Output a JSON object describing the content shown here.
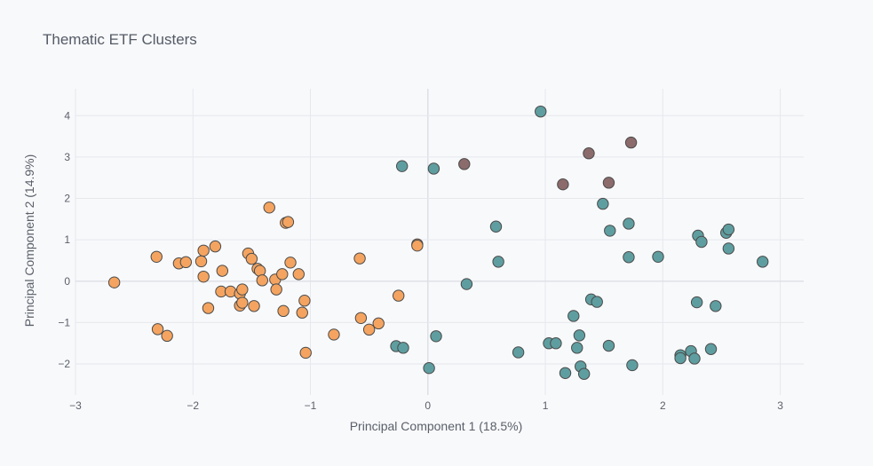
{
  "chart_data": {
    "type": "scatter",
    "title": "Thematic ETF Clusters",
    "xlabel": "Principal Component 1 (18.5%)",
    "ylabel": "Principal Component 2 (14.9%)",
    "xlim": [
      -3,
      3.2
    ],
    "ylim": [
      -2.75,
      4.65
    ],
    "x_ticks": [
      -3,
      -2,
      -1,
      0,
      1,
      2,
      3
    ],
    "y_ticks": [
      -2,
      -1,
      0,
      1,
      2,
      3,
      4
    ],
    "grid": true,
    "legend": "none",
    "colors": {
      "orange": "#f4a460",
      "teal": "#5f9ea0",
      "mauve": "#8b6b6b"
    },
    "series": [
      {
        "color": "#f4a460",
        "points": [
          [
            -2.67,
            -0.03
          ],
          [
            -2.31,
            0.59
          ],
          [
            -2.3,
            -1.16
          ],
          [
            -2.22,
            -1.32
          ],
          [
            -2.12,
            0.43
          ],
          [
            -2.06,
            0.46
          ],
          [
            -1.93,
            0.48
          ],
          [
            -1.91,
            0.74
          ],
          [
            -1.91,
            0.11
          ],
          [
            -1.87,
            -0.65
          ],
          [
            -1.81,
            0.84
          ],
          [
            -1.76,
            -0.25
          ],
          [
            -1.75,
            0.25
          ],
          [
            -1.68,
            -0.25
          ],
          [
            -1.6,
            -0.59
          ],
          [
            -1.6,
            -0.3
          ],
          [
            -1.58,
            -0.2
          ],
          [
            -1.58,
            -0.52
          ],
          [
            -1.53,
            0.67
          ],
          [
            -1.5,
            0.54
          ],
          [
            -1.48,
            -0.6
          ],
          [
            -1.45,
            0.3
          ],
          [
            -1.43,
            0.25
          ],
          [
            -1.41,
            0.02
          ],
          [
            -1.35,
            1.78
          ],
          [
            -1.3,
            0.04
          ],
          [
            -1.29,
            -0.2
          ],
          [
            -1.24,
            0.17
          ],
          [
            -1.23,
            -0.72
          ],
          [
            -1.21,
            1.41
          ],
          [
            -1.19,
            1.43
          ],
          [
            -1.17,
            0.45
          ],
          [
            -1.1,
            0.17
          ],
          [
            -1.07,
            -0.76
          ],
          [
            -1.05,
            -0.47
          ],
          [
            -1.04,
            -1.73
          ],
          [
            -0.8,
            -1.29
          ],
          [
            -0.58,
            0.55
          ],
          [
            -0.57,
            -0.89
          ],
          [
            -0.5,
            -1.17
          ],
          [
            -0.42,
            -1.02
          ],
          [
            -0.25,
            -0.35
          ],
          [
            -0.09,
            0.89
          ],
          [
            -0.09,
            0.86
          ]
        ]
      },
      {
        "color": "#5f9ea0",
        "points": [
          [
            -0.22,
            2.78
          ],
          [
            0.05,
            2.72
          ],
          [
            -0.27,
            -1.57
          ],
          [
            -0.21,
            -1.61
          ],
          [
            0.01,
            -2.1
          ],
          [
            0.07,
            -1.33
          ],
          [
            0.33,
            -0.07
          ],
          [
            0.58,
            1.32
          ],
          [
            0.6,
            0.47
          ],
          [
            0.77,
            -1.72
          ],
          [
            0.96,
            4.1
          ],
          [
            1.03,
            -1.5
          ],
          [
            1.09,
            -1.5
          ],
          [
            1.17,
            -2.22
          ],
          [
            1.24,
            -0.84
          ],
          [
            1.27,
            -1.61
          ],
          [
            1.29,
            -1.31
          ],
          [
            1.3,
            -2.06
          ],
          [
            1.33,
            -2.24
          ],
          [
            1.39,
            -0.44
          ],
          [
            1.44,
            -0.5
          ],
          [
            1.49,
            1.87
          ],
          [
            1.54,
            -1.56
          ],
          [
            1.55,
            1.22
          ],
          [
            1.71,
            1.39
          ],
          [
            1.71,
            0.58
          ],
          [
            1.74,
            -2.03
          ],
          [
            1.96,
            0.59
          ],
          [
            2.15,
            -1.79
          ],
          [
            2.15,
            -1.86
          ],
          [
            2.24,
            -1.69
          ],
          [
            2.27,
            -1.87
          ],
          [
            2.29,
            -0.51
          ],
          [
            2.3,
            1.1
          ],
          [
            2.33,
            0.95
          ],
          [
            2.41,
            -1.64
          ],
          [
            2.45,
            -0.6
          ],
          [
            2.54,
            1.17
          ],
          [
            2.56,
            1.25
          ],
          [
            2.56,
            0.79
          ],
          [
            2.85,
            0.47
          ]
        ]
      },
      {
        "color": "#8b6b6b",
        "points": [
          [
            0.31,
            2.83
          ],
          [
            1.15,
            2.34
          ],
          [
            1.37,
            3.09
          ],
          [
            1.54,
            2.38
          ],
          [
            1.73,
            3.35
          ]
        ]
      }
    ]
  }
}
